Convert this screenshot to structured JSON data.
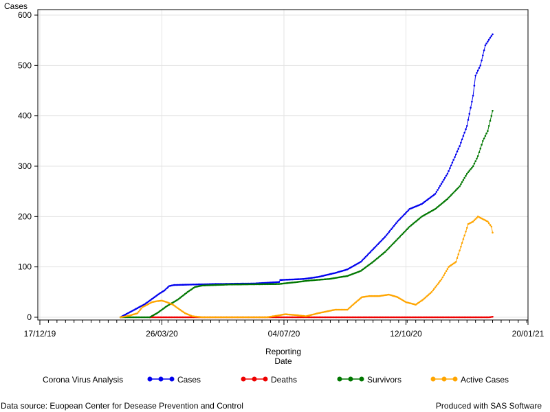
{
  "footnotes": {
    "left": "Data source: Euopean Center for Desease Prevention and Control",
    "right": "Produced with SAS Software"
  },
  "colors": {
    "Cases": "#0000ee",
    "Deaths": "#ee0000",
    "Survivors": "#007700",
    "Active Cases": "#ffa500",
    "grid": "#e3e3e3",
    "axis": "#000000"
  },
  "chart_data": {
    "type": "line",
    "title": "",
    "ylabel": "Cases",
    "xlabel": [
      "Reporting",
      "Date"
    ],
    "legend_title": "Corona Virus Analysis",
    "legend_position": "bottom",
    "grid": true,
    "x_range": [
      "2019-12-17",
      "2021-01-20"
    ],
    "ylim": [
      0,
      600
    ],
    "y_ticks": [
      0,
      100,
      200,
      300,
      400,
      500,
      600
    ],
    "x_ticks": [
      {
        "date": "2019-12-17",
        "label": "17/12/19"
      },
      {
        "date": "2020-03-26",
        "label": "26/03/20"
      },
      {
        "date": "2020-07-04",
        "label": "04/07/20"
      },
      {
        "date": "2020-10-12",
        "label": "12/10/20"
      },
      {
        "date": "2021-01-20",
        "label": "20/01/21"
      }
    ],
    "series": [
      {
        "name": "Cases",
        "points": [
          [
            "2020-02-21",
            0
          ],
          [
            "2020-03-12",
            26
          ],
          [
            "2020-03-16",
            33
          ],
          [
            "2020-03-20",
            40
          ],
          [
            "2020-03-24",
            47
          ],
          [
            "2020-03-28",
            53
          ],
          [
            "2020-04-01",
            62
          ],
          [
            "2020-04-05",
            64
          ],
          [
            "2020-04-20",
            65
          ],
          [
            "2020-05-10",
            66
          ],
          [
            "2020-06-10",
            67
          ],
          [
            "2020-06-30",
            70
          ],
          [
            "2020-07-01",
            74
          ],
          [
            "2020-07-20",
            76
          ],
          [
            "2020-08-01",
            80
          ],
          [
            "2020-08-15",
            88
          ],
          [
            "2020-08-25",
            95
          ],
          [
            "2020-09-05",
            110
          ],
          [
            "2020-09-15",
            135
          ],
          [
            "2020-09-25",
            160
          ],
          [
            "2020-10-05",
            190
          ],
          [
            "2020-10-15",
            215
          ],
          [
            "2020-10-25",
            225
          ],
          [
            "2020-11-05",
            245
          ],
          [
            "2020-11-15",
            285
          ],
          [
            "2020-11-25",
            340
          ],
          [
            "2020-12-01",
            380
          ],
          [
            "2020-12-06",
            440
          ],
          [
            "2020-12-08",
            480
          ],
          [
            "2020-12-12",
            500
          ],
          [
            "2020-12-16",
            540
          ],
          [
            "2020-12-20",
            555
          ],
          [
            "2020-12-22",
            562
          ]
        ]
      },
      {
        "name": "Deaths",
        "points": [
          [
            "2020-03-16",
            0
          ],
          [
            "2020-06-01",
            0
          ],
          [
            "2020-09-01",
            0
          ],
          [
            "2020-12-19",
            0
          ],
          [
            "2020-12-22",
            1
          ]
        ]
      },
      {
        "name": "Survivors",
        "points": [
          [
            "2020-02-21",
            0
          ],
          [
            "2020-03-16",
            0
          ],
          [
            "2020-03-22",
            8
          ],
          [
            "2020-03-30",
            22
          ],
          [
            "2020-04-08",
            35
          ],
          [
            "2020-04-16",
            50
          ],
          [
            "2020-04-22",
            60
          ],
          [
            "2020-04-28",
            63
          ],
          [
            "2020-05-20",
            65
          ],
          [
            "2020-06-30",
            66
          ],
          [
            "2020-07-15",
            70
          ],
          [
            "2020-07-25",
            73
          ],
          [
            "2020-08-10",
            76
          ],
          [
            "2020-08-25",
            82
          ],
          [
            "2020-09-05",
            92
          ],
          [
            "2020-09-15",
            110
          ],
          [
            "2020-09-25",
            130
          ],
          [
            "2020-10-05",
            155
          ],
          [
            "2020-10-15",
            180
          ],
          [
            "2020-10-25",
            200
          ],
          [
            "2020-11-05",
            215
          ],
          [
            "2020-11-15",
            235
          ],
          [
            "2020-11-25",
            260
          ],
          [
            "2020-12-01",
            285
          ],
          [
            "2020-12-06",
            300
          ],
          [
            "2020-12-10",
            320
          ],
          [
            "2020-12-14",
            350
          ],
          [
            "2020-12-18",
            370
          ],
          [
            "2020-12-22",
            410
          ]
        ]
      },
      {
        "name": "Active Cases",
        "points": [
          [
            "2020-02-21",
            0
          ],
          [
            "2020-02-28",
            3
          ],
          [
            "2020-03-06",
            8
          ],
          [
            "2020-03-10",
            20
          ],
          [
            "2020-03-14",
            25
          ],
          [
            "2020-03-18",
            30
          ],
          [
            "2020-03-22",
            32
          ],
          [
            "2020-03-26",
            33
          ],
          [
            "2020-03-30",
            30
          ],
          [
            "2020-04-04",
            25
          ],
          [
            "2020-04-08",
            18
          ],
          [
            "2020-04-14",
            8
          ],
          [
            "2020-04-20",
            2
          ],
          [
            "2020-04-28",
            0
          ],
          [
            "2020-06-20",
            0
          ],
          [
            "2020-06-28",
            3
          ],
          [
            "2020-07-05",
            6
          ],
          [
            "2020-07-15",
            4
          ],
          [
            "2020-07-22",
            2
          ],
          [
            "2020-08-01",
            8
          ],
          [
            "2020-08-15",
            15
          ],
          [
            "2020-08-25",
            15
          ],
          [
            "2020-09-01",
            30
          ],
          [
            "2020-09-06",
            40
          ],
          [
            "2020-09-12",
            42
          ],
          [
            "2020-09-20",
            42
          ],
          [
            "2020-09-28",
            45
          ],
          [
            "2020-10-05",
            40
          ],
          [
            "2020-10-12",
            30
          ],
          [
            "2020-10-20",
            25
          ],
          [
            "2020-10-26",
            35
          ],
          [
            "2020-11-02",
            50
          ],
          [
            "2020-11-10",
            75
          ],
          [
            "2020-11-16",
            100
          ],
          [
            "2020-11-22",
            110
          ],
          [
            "2020-11-26",
            140
          ],
          [
            "2020-12-02",
            185
          ],
          [
            "2020-12-06",
            190
          ],
          [
            "2020-12-10",
            200
          ],
          [
            "2020-12-14",
            195
          ],
          [
            "2020-12-18",
            190
          ],
          [
            "2020-12-21",
            180
          ],
          [
            "2020-12-22",
            168
          ]
        ]
      }
    ]
  }
}
